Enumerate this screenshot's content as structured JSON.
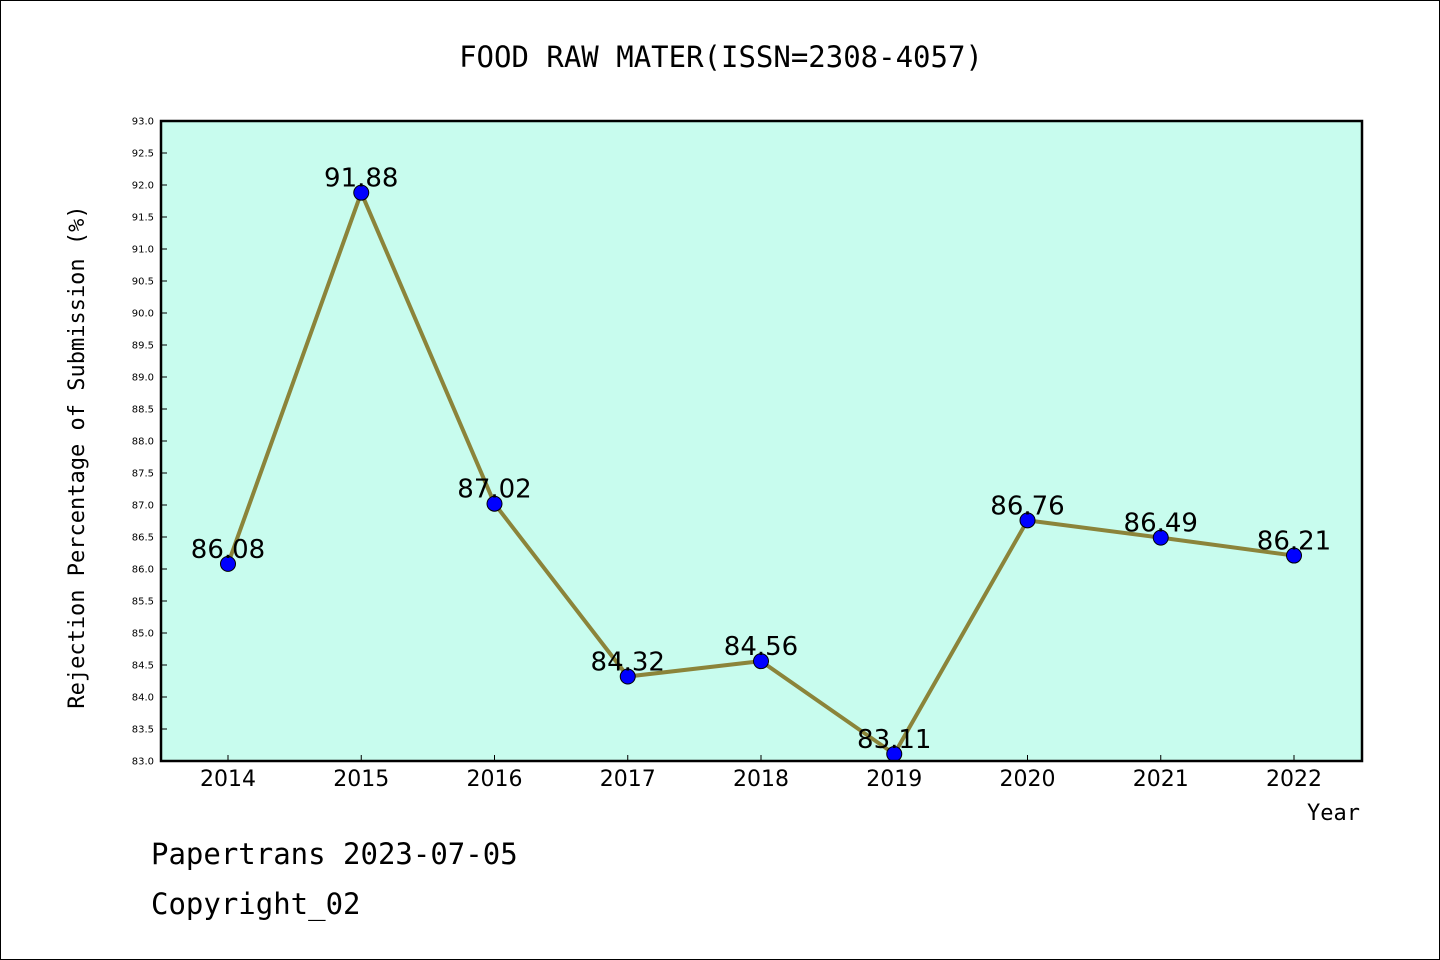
{
  "chart_data": {
    "type": "line",
    "title": "FOOD RAW MATER(ISSN=2308-4057)",
    "xlabel": "Year",
    "ylabel": "Rejection Percentage of Submission (%)",
    "categories": [
      "2014",
      "2015",
      "2016",
      "2017",
      "2018",
      "2019",
      "2020",
      "2021",
      "2022"
    ],
    "values": [
      86.08,
      91.88,
      87.02,
      84.32,
      84.56,
      83.11,
      86.76,
      86.49,
      86.21
    ],
    "value_labels": [
      "86.08",
      "91.88",
      "87.02",
      "84.32",
      "84.56",
      "83.11",
      "86.76",
      "86.49",
      "86.21"
    ],
    "ylim": [
      83.0,
      93.0
    ],
    "yticks": [
      "83.0",
      "83.5",
      "84.0",
      "84.5",
      "85.0",
      "85.5",
      "86.0",
      "86.5",
      "87.0",
      "87.5",
      "88.0",
      "88.5",
      "89.0",
      "89.5",
      "90.0",
      "90.5",
      "91.0",
      "91.5",
      "92.0",
      "92.5",
      "93.0"
    ],
    "grid": false,
    "legend": "none",
    "colors": {
      "plot_background": "#c8fcee",
      "line": "#8b843a",
      "marker": "#0000ff",
      "marker_edge": "#000000"
    }
  },
  "footer": {
    "line1": "Papertrans 2023-07-05",
    "line2": "Copyright_02"
  }
}
